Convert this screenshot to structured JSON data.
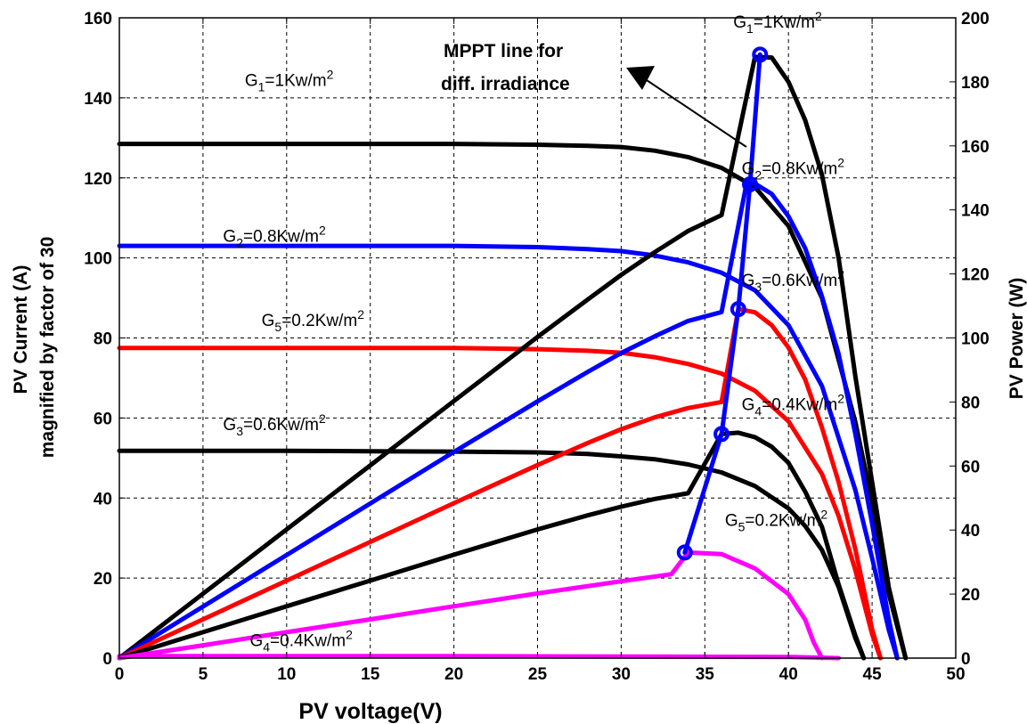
{
  "chart_data": {
    "type": "line",
    "xlabel": "PV voltage(V)",
    "ylabel_left_line1": "PV Current (A)",
    "ylabel_left_line2": "magnified by factor of  30",
    "ylabel_right": "PV Power (W)",
    "xlim": [
      0,
      50
    ],
    "ylim_left": [
      0,
      160
    ],
    "ylim_right": [
      0,
      200
    ],
    "x_ticks": [
      "0",
      "5",
      "10",
      "15",
      "20",
      "25",
      "30",
      "35",
      "40",
      "45",
      "50"
    ],
    "y_left_ticks": [
      "0",
      "20",
      "40",
      "60",
      "80",
      "100",
      "120",
      "140",
      "160"
    ],
    "y_right_ticks": [
      "0",
      "20",
      "40",
      "60",
      "80",
      "100",
      "120",
      "140",
      "160",
      "180",
      "200"
    ],
    "grid": true,
    "series": [
      {
        "color": "#000000",
        "axis": "left",
        "x": [
          0,
          5,
          10,
          15,
          20,
          25,
          28,
          30,
          32,
          34,
          36,
          38,
          40,
          42,
          44,
          45,
          46,
          47
        ],
        "y": [
          128.5,
          128.5,
          128.5,
          128.5,
          128.5,
          128.3,
          128.0,
          127.7,
          126.8,
          125.2,
          122.5,
          117.7,
          108.0,
          90.0,
          59.0,
          39.0,
          16.0,
          0
        ]
      },
      {
        "color": "#0000ff",
        "axis": "left",
        "x": [
          0,
          5,
          10,
          15,
          20,
          25,
          28,
          30,
          32,
          34,
          36,
          38,
          40,
          42,
          44,
          45,
          46,
          46.5
        ],
        "y": [
          103,
          103,
          103,
          103,
          103,
          102.7,
          102.2,
          101.7,
          100.6,
          98.9,
          96.3,
          91.9,
          83.2,
          68.0,
          42.0,
          25.0,
          7.0,
          0
        ]
      },
      {
        "color": "#ff0000",
        "axis": "left",
        "x": [
          0,
          5,
          10,
          15,
          20,
          25,
          28,
          30,
          32,
          34,
          36,
          38,
          40,
          42,
          43,
          44,
          45,
          45.5
        ],
        "y": [
          77.5,
          77.5,
          77.5,
          77.5,
          77.5,
          77.2,
          76.8,
          76.3,
          75.2,
          73.5,
          71.1,
          66.8,
          59.2,
          46.0,
          35.5,
          22.0,
          6.0,
          0
        ]
      },
      {
        "color": "#000000",
        "axis": "left",
        "x": [
          0,
          5,
          10,
          15,
          20,
          25,
          28,
          30,
          32,
          34,
          36,
          38,
          40,
          41,
          42,
          43,
          44,
          44.5
        ],
        "y": [
          51.8,
          51.8,
          51.8,
          51.7,
          51.6,
          51.4,
          51.0,
          50.4,
          49.7,
          48.4,
          46.4,
          43.0,
          37.4,
          33.0,
          27.0,
          17.8,
          5.0,
          0
        ]
      },
      {
        "color": "#ff00ff",
        "axis": "left",
        "x": [
          0,
          10,
          20,
          30,
          40,
          43
        ],
        "y": [
          0.5,
          0.5,
          0.5,
          0.4,
          0.3,
          0
        ]
      },
      {
        "color": "#000000",
        "axis": "right",
        "x": [
          0,
          5,
          10,
          15,
          20,
          25,
          28,
          30,
          32,
          34,
          36,
          38,
          39,
          40,
          41,
          42,
          43,
          44,
          45,
          46,
          47
        ],
        "y": [
          0,
          20.1,
          40.2,
          60.2,
          80.3,
          100.3,
          112.0,
          119.7,
          126.8,
          133.4,
          138.4,
          187.8,
          187.6,
          180.0,
          168.0,
          151.0,
          125.0,
          88.0,
          55.0,
          22.0,
          0
        ]
      },
      {
        "color": "#0000ff",
        "axis": "right",
        "x": [
          0,
          5,
          10,
          15,
          20,
          25,
          28,
          30,
          32,
          34,
          36,
          37.5,
          38,
          39,
          40,
          41,
          42,
          43,
          44,
          45,
          46,
          46.5
        ],
        "y": [
          0,
          16.1,
          32.2,
          48.3,
          64.4,
          80.2,
          89.4,
          95.3,
          100.5,
          105.3,
          108.1,
          148.5,
          148.2,
          145.0,
          138.0,
          128.0,
          113.0,
          95.0,
          70.0,
          42.0,
          12.0,
          0
        ]
      },
      {
        "color": "#ff0000",
        "axis": "right",
        "x": [
          0,
          5,
          10,
          15,
          20,
          25,
          28,
          30,
          32,
          34,
          36,
          37,
          38,
          39,
          40,
          41,
          42,
          43,
          44,
          45,
          45.5
        ],
        "y": [
          0,
          12.1,
          24.2,
          36.3,
          48.4,
          60.3,
          67.2,
          71.5,
          75.2,
          78.1,
          80.0,
          109.0,
          108.0,
          104.0,
          97.0,
          87.0,
          72.0,
          55.0,
          34.0,
          9.0,
          0
        ]
      },
      {
        "color": "#000000",
        "axis": "right",
        "x": [
          0,
          5,
          10,
          15,
          20,
          25,
          28,
          30,
          32,
          34,
          36,
          37,
          38,
          39,
          40,
          41,
          42,
          43,
          44,
          44.5
        ],
        "y": [
          0,
          8.1,
          16.2,
          24.2,
          32.3,
          40.2,
          44.6,
          47.3,
          49.7,
          51.5,
          70.0,
          70.4,
          69.0,
          66.0,
          61.0,
          52.0,
          41.0,
          23.0,
          7.0,
          0
        ]
      },
      {
        "color": "#ff00ff",
        "axis": "right",
        "x": [
          0,
          5,
          10,
          15,
          20,
          25,
          30,
          33,
          34,
          36,
          38,
          40,
          41,
          41.5,
          42
        ],
        "y": [
          0,
          4.0,
          8.1,
          12.1,
          16.2,
          20.2,
          24.0,
          26.2,
          33.0,
          32.5,
          28.0,
          20.0,
          12.0,
          5.0,
          0
        ]
      },
      {
        "color": "#0000ff",
        "axis": "right",
        "markers": true,
        "x": [
          33.8,
          36.0,
          37.0,
          37.7,
          38.3
        ],
        "y": [
          33,
          70,
          109,
          148,
          188.5
        ]
      }
    ],
    "annotations": [
      {
        "text": "G",
        "sub": "1",
        "rest": "=1Kw/m",
        "sup": "2",
        "x": 7.5,
        "y": 143
      },
      {
        "text": "G",
        "sub": "2",
        "rest": "=0.8Kw/m",
        "sup": "2",
        "x": 6.2,
        "y": 104
      },
      {
        "text": "G",
        "sub": "5",
        "rest": "=0.2Kw/m",
        "sup": "2",
        "x": 8.5,
        "y": 83
      },
      {
        "text": "G",
        "sub": "3",
        "rest": "=0.6Kw/m",
        "sup": "2",
        "x": 6.2,
        "y": 57
      },
      {
        "text": "G",
        "sub": "4",
        "rest": "=0.4Kw/m",
        "sup": "2",
        "x": 7.8,
        "y": 3
      },
      {
        "text": "G",
        "sub": "1",
        "rest": "=1Kw/m",
        "sup": "2",
        "x": 36.7,
        "y": 157.5
      },
      {
        "text": "G",
        "sub": "2",
        "rest": "=0.8Kw/m",
        "sup": "2",
        "x": 37.2,
        "y": 121
      },
      {
        "text": "G",
        "sub": "3",
        "rest": "=0.6Kw/m",
        "sup": "2",
        "x": 37.2,
        "y": 93
      },
      {
        "text": "G",
        "sub": "4",
        "rest": "=0.4Kw/m",
        "sup": "2",
        "x": 37.2,
        "y": 62
      },
      {
        "text": "G",
        "sub": "5",
        "rest": "=0.2Kw/m",
        "sup": "2",
        "x": 36.2,
        "y": 33
      }
    ],
    "mppt_label_line1": "MPPT line for",
    "mppt_label_line2": "diff. irradiance"
  }
}
